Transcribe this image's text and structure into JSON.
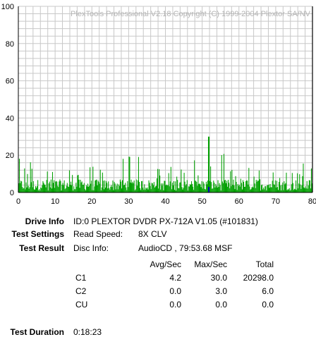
{
  "chart_data": {
    "type": "bar",
    "title": "PlexTools Professional V2.18 Copyright (C) 1999-2004 Plextor SA/NV",
    "xlim": [
      0,
      80
    ],
    "ylim": [
      0,
      100
    ],
    "x_ticks": [
      "0",
      "10",
      "20",
      "30",
      "40",
      "50",
      "60",
      "70",
      "80"
    ],
    "y_ticks": [
      "0",
      "20",
      "40",
      "60",
      "80",
      "100"
    ],
    "grid": true,
    "series": [
      {
        "name": "C1",
        "color": "#00a000",
        "avg": 4.2,
        "max": 30.0
      },
      {
        "name": "C2",
        "color": "#0000c0",
        "spikes": [
          [
            51.8,
            3.0
          ]
        ]
      },
      {
        "name": "CU",
        "color": "#000000",
        "marker_x": 80
      }
    ],
    "gridline_color": "#c8c8c8"
  },
  "info": {
    "drive_label": "Drive Info",
    "drive_value": "ID:0 PLEXTOR DVDR PX-712A V1.05 (#101831)",
    "settings_label": "Test Settings",
    "read_speed_label": "Read Speed:",
    "read_speed_value": "8X CLV",
    "result_label": "Test Result",
    "disc_info_label": "Disc Info:",
    "disc_info_value": "AudioCD , 79:53.68 MSF",
    "duration_label": "Test Duration",
    "duration_value": "0:18:23"
  },
  "results": {
    "headers": [
      "Avg/Sec",
      "Max/Sec",
      "Total"
    ],
    "rows": [
      {
        "name": "C1",
        "avg": "4.2",
        "max": "30.0",
        "total": "20298.0"
      },
      {
        "name": "C2",
        "avg": "0.0",
        "max": "3.0",
        "total": "6.0"
      },
      {
        "name": "CU",
        "avg": "0.0",
        "max": "0.0",
        "total": "0.0"
      }
    ]
  }
}
